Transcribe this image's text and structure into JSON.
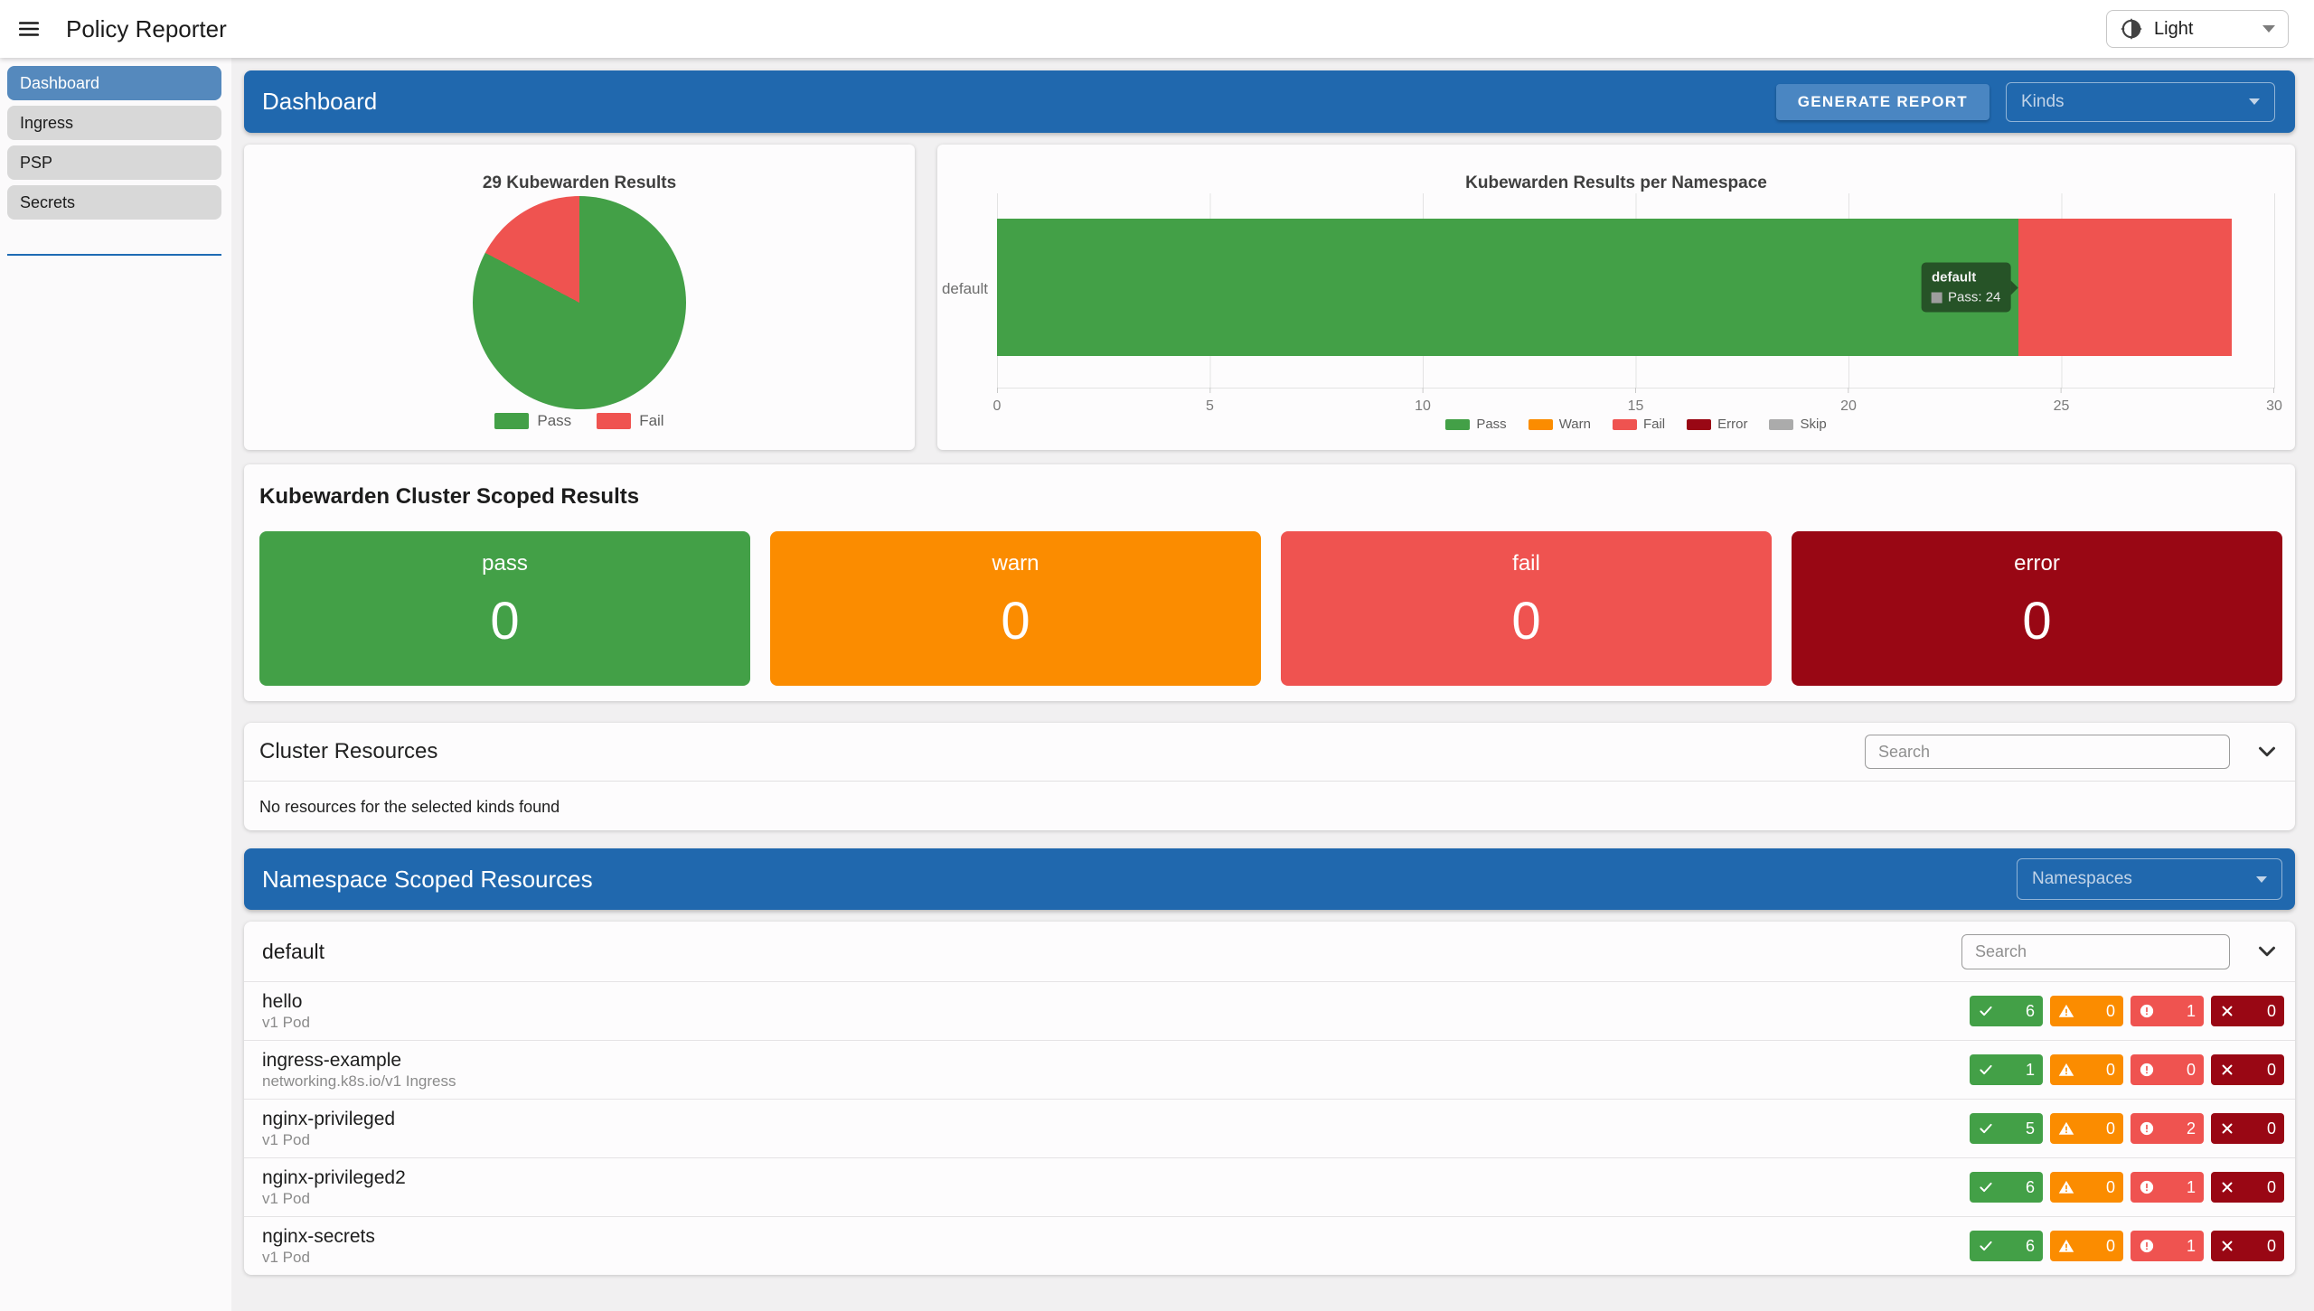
{
  "app": {
    "title": "Policy Reporter",
    "theme_label": "Light"
  },
  "colors": {
    "pass": "#43A047",
    "warn": "#FB8C00",
    "fail": "#EF5350",
    "error": "#990714",
    "skip": "#ABABAB",
    "header_blue": "#2068AE",
    "button_blue": "#4A86C2",
    "sidebar_active": "#5589BD"
  },
  "icons": {
    "menu": "hamburger",
    "theme": "brightness-half",
    "dropdown": "caret-down",
    "expand": "chevron-down",
    "pass": "check",
    "warn": "warning-triangle",
    "fail": "exclamation-circle",
    "error": "x-cross"
  },
  "sidebar": {
    "items": [
      {
        "label": "Dashboard",
        "active": true
      },
      {
        "label": "Ingress",
        "active": false
      },
      {
        "label": "PSP",
        "active": false
      },
      {
        "label": "Secrets",
        "active": false
      }
    ]
  },
  "header": {
    "title": "Dashboard",
    "generate_report_label": "GENERATE REPORT",
    "kinds_label": "Kinds"
  },
  "chart_data": [
    {
      "type": "pie",
      "title": "29 Kubewarden Results",
      "labels": [
        "Pass",
        "Fail"
      ],
      "values": [
        24,
        5
      ],
      "colors": [
        "#43A047",
        "#EF5350"
      ],
      "legend_position": "bottom",
      "total": 29
    },
    {
      "type": "bar",
      "title": "Kubewarden Results per Namespace",
      "orientation": "horizontal",
      "stacked": true,
      "categories": [
        "default"
      ],
      "series": [
        {
          "name": "Pass",
          "values": [
            24
          ],
          "color": "#43A047"
        },
        {
          "name": "Warn",
          "values": [
            0
          ],
          "color": "#FB8C00"
        },
        {
          "name": "Fail",
          "values": [
            5
          ],
          "color": "#EF5350"
        },
        {
          "name": "Error",
          "values": [
            0
          ],
          "color": "#990714"
        },
        {
          "name": "Skip",
          "values": [
            0
          ],
          "color": "#ABABAB"
        }
      ],
      "xlim": [
        0,
        30
      ],
      "xticks": [
        0,
        5,
        10,
        15,
        20,
        25,
        30
      ],
      "grid": true,
      "legend_position": "bottom",
      "tooltip": {
        "title": "default",
        "label": "Pass: 24"
      }
    }
  ],
  "cluster_results": {
    "title": "Kubewarden Cluster Scoped Results",
    "cards": [
      {
        "label": "pass",
        "value": "0"
      },
      {
        "label": "warn",
        "value": "0"
      },
      {
        "label": "fail",
        "value": "0"
      },
      {
        "label": "error",
        "value": "0"
      }
    ]
  },
  "cluster_resources": {
    "title": "Cluster Resources",
    "search_placeholder": "Search",
    "empty_message": "No resources for the selected kinds found"
  },
  "namespace_section": {
    "title": "Namespace Scoped Resources",
    "namespaces_label": "Namespaces"
  },
  "namespace_panel": {
    "title": "default",
    "search_placeholder": "Search",
    "rows": [
      {
        "name": "hello",
        "kind": "v1 Pod",
        "counts": {
          "pass": "6",
          "warn": "0",
          "fail": "1",
          "error": "0"
        }
      },
      {
        "name": "ingress-example",
        "kind": "networking.k8s.io/v1 Ingress",
        "counts": {
          "pass": "1",
          "warn": "0",
          "fail": "0",
          "error": "0"
        }
      },
      {
        "name": "nginx-privileged",
        "kind": "v1 Pod",
        "counts": {
          "pass": "5",
          "warn": "0",
          "fail": "2",
          "error": "0"
        }
      },
      {
        "name": "nginx-privileged2",
        "kind": "v1 Pod",
        "counts": {
          "pass": "6",
          "warn": "0",
          "fail": "1",
          "error": "0"
        }
      },
      {
        "name": "nginx-secrets",
        "kind": "v1 Pod",
        "counts": {
          "pass": "6",
          "warn": "0",
          "fail": "1",
          "error": "0"
        }
      }
    ]
  }
}
